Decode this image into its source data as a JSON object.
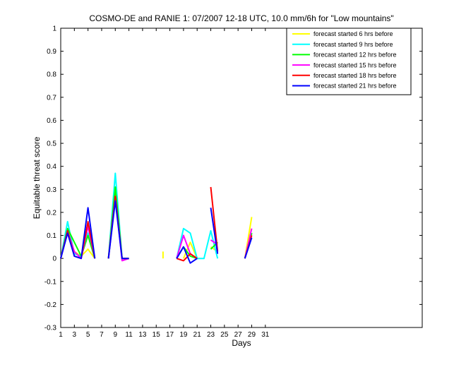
{
  "chart_data": {
    "type": "line",
    "title": "COSMO-DE and RANIE 1: 07/2007 12-18 UTC, 10.0 mm/6h for \"Low mountains\"",
    "xlabel": "Days",
    "ylabel": "Equitable threat score",
    "xlim": [
      1,
      54
    ],
    "ylim": [
      -0.3,
      1
    ],
    "xticks": [
      1,
      3,
      5,
      7,
      9,
      11,
      13,
      15,
      17,
      19,
      21,
      23,
      25,
      27,
      29,
      31
    ],
    "yticks": [
      -0.3,
      -0.2,
      -0.1,
      0,
      0.1,
      0.2,
      0.3,
      0.4,
      0.5,
      0.6,
      0.7,
      0.8,
      0.9,
      1
    ],
    "ytick_labels": [
      "-0.3",
      "-0.2",
      "-0.1",
      "0",
      "0.1",
      "0.2",
      "0.3",
      "0.4",
      "0.5",
      "0.6",
      "0.7",
      "0.8",
      "0.9",
      "1"
    ],
    "grid": false,
    "legend_position": "top-right",
    "series": [
      {
        "name": "forecast started 6 hrs before",
        "color": "#ffff00",
        "segments": [
          [
            [
              1,
              0.0
            ],
            [
              2,
              0.12
            ],
            [
              3,
              0.03
            ],
            [
              4,
              0.01
            ],
            [
              5,
              0.04
            ],
            [
              6,
              0.0
            ]
          ],
          [
            [
              8,
              0.0
            ],
            [
              9,
              0.28
            ],
            [
              10,
              0.0
            ],
            [
              11,
              0.0
            ]
          ],
          [
            [
              16,
              0.03
            ],
            [
              16,
              0.0
            ]
          ],
          [
            [
              19,
              0.0
            ],
            [
              20,
              0.07
            ],
            [
              21,
              0.0
            ]
          ],
          [
            [
              23,
              0.05
            ],
            [
              24,
              0.03
            ]
          ],
          [
            [
              28,
              0.0
            ],
            [
              29,
              0.18
            ]
          ]
        ]
      },
      {
        "name": "forecast started 9 hrs before",
        "color": "#00ffff",
        "segments": [
          [
            [
              1,
              0.0
            ],
            [
              2,
              0.16
            ],
            [
              3,
              0.02
            ],
            [
              4,
              0.01
            ],
            [
              5,
              0.11
            ],
            [
              6,
              0.0
            ]
          ],
          [
            [
              8,
              0.0
            ],
            [
              9,
              0.37
            ],
            [
              10,
              0.0
            ],
            [
              11,
              0.0
            ]
          ],
          [
            [
              18,
              0.0
            ],
            [
              19,
              0.13
            ],
            [
              20,
              0.11
            ],
            [
              21,
              0.0
            ],
            [
              22,
              0.0
            ],
            [
              23,
              0.12
            ],
            [
              24,
              0.0
            ]
          ],
          [
            [
              28,
              0.0
            ],
            [
              29,
              0.11
            ]
          ]
        ]
      },
      {
        "name": "forecast started 12 hrs before",
        "color": "#00ff00",
        "segments": [
          [
            [
              1,
              0.0
            ],
            [
              2,
              0.13
            ],
            [
              3,
              0.07
            ],
            [
              4,
              0.01
            ],
            [
              5,
              0.1
            ],
            [
              6,
              0.0
            ]
          ],
          [
            [
              8,
              0.0
            ],
            [
              9,
              0.31
            ],
            [
              10,
              0.0
            ],
            [
              11,
              0.0
            ]
          ],
          [
            [
              18,
              0.0
            ],
            [
              19,
              0.05
            ],
            [
              20,
              0.01
            ],
            [
              21,
              0.0
            ]
          ],
          [
            [
              23,
              0.04
            ],
            [
              24,
              0.07
            ]
          ],
          [
            [
              28,
              0.0
            ],
            [
              29,
              0.11
            ]
          ]
        ]
      },
      {
        "name": "forecast started 15 hrs before",
        "color": "#ff00ff",
        "segments": [
          [
            [
              1,
              0.0
            ],
            [
              2,
              0.12
            ],
            [
              3,
              0.03
            ],
            [
              4,
              0.0
            ],
            [
              5,
              0.14
            ],
            [
              6,
              0.0
            ]
          ],
          [
            [
              8,
              0.0
            ],
            [
              9,
              0.27
            ],
            [
              10,
              -0.01
            ],
            [
              11,
              0.0
            ]
          ],
          [
            [
              18,
              0.0
            ],
            [
              19,
              0.1
            ],
            [
              20,
              0.02
            ],
            [
              21,
              0.0
            ]
          ],
          [
            [
              23,
              0.08
            ],
            [
              24,
              0.06
            ]
          ],
          [
            [
              28,
              0.0
            ],
            [
              29,
              0.13
            ]
          ]
        ]
      },
      {
        "name": "forecast started 18 hrs before",
        "color": "#ff0000",
        "segments": [
          [
            [
              1,
              0.0
            ],
            [
              2,
              0.12
            ],
            [
              3,
              0.01
            ],
            [
              4,
              0.0
            ],
            [
              5,
              0.16
            ],
            [
              6,
              0.0
            ]
          ],
          [
            [
              8,
              0.0
            ],
            [
              9,
              0.27
            ],
            [
              10,
              0.0
            ],
            [
              11,
              0.0
            ]
          ],
          [
            [
              18,
              0.0
            ],
            [
              19,
              -0.01
            ],
            [
              20,
              0.02
            ],
            [
              21,
              0.0
            ]
          ],
          [
            [
              23,
              0.31
            ],
            [
              24,
              0.03
            ]
          ],
          [
            [
              28,
              0.0
            ],
            [
              29,
              0.1
            ]
          ]
        ]
      },
      {
        "name": "forecast started 21 hrs before",
        "color": "#0000ff",
        "segments": [
          [
            [
              1,
              0.0
            ],
            [
              2,
              0.11
            ],
            [
              3,
              0.01
            ],
            [
              4,
              0.0
            ],
            [
              5,
              0.22
            ],
            [
              6,
              0.0
            ]
          ],
          [
            [
              8,
              0.0
            ],
            [
              9,
              0.25
            ],
            [
              10,
              0.0
            ],
            [
              11,
              0.0
            ]
          ],
          [
            [
              18,
              0.0
            ],
            [
              19,
              0.05
            ],
            [
              20,
              -0.02
            ],
            [
              21,
              0.0
            ]
          ],
          [
            [
              23,
              0.22
            ],
            [
              24,
              0.02
            ]
          ],
          [
            [
              28,
              0.0
            ],
            [
              29,
              0.09
            ]
          ]
        ]
      }
    ]
  }
}
